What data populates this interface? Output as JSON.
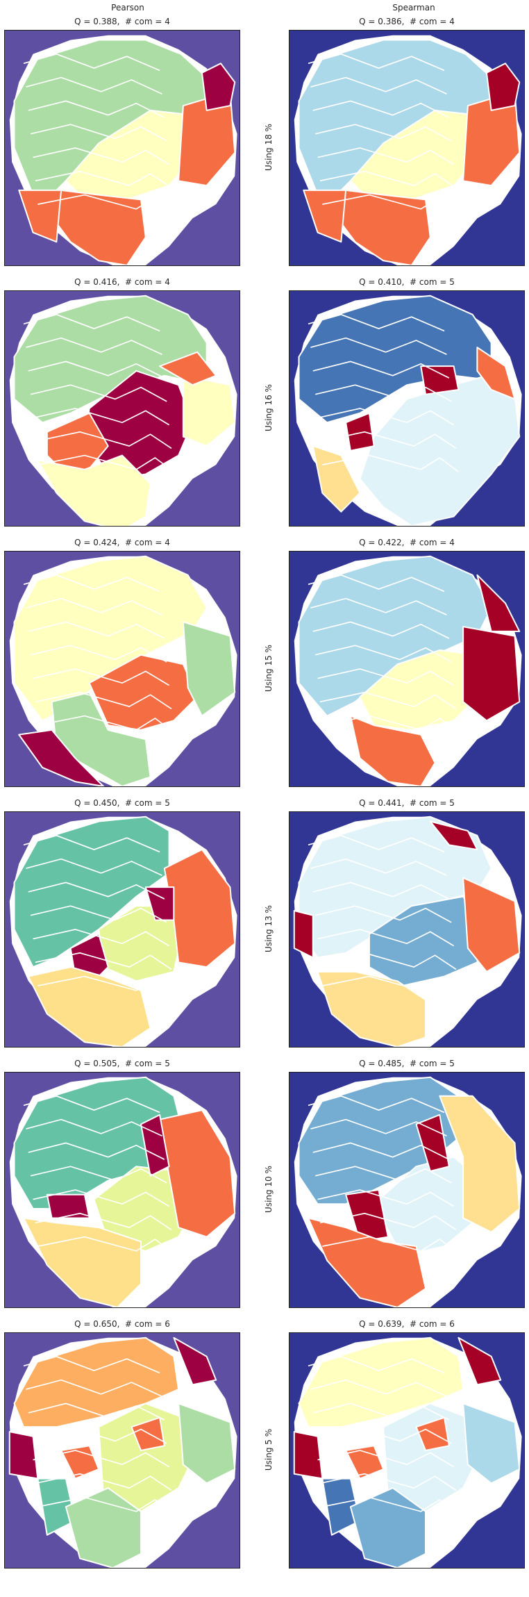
{
  "columns": {
    "left": "Pearson",
    "right": "Spearman"
  },
  "rows": [
    {
      "label": "Using 18 %",
      "pearson_title": "Q = 0.388,  # com = 4",
      "spearman_title": "Q = 0.386,  # com = 4"
    },
    {
      "label": "Using 16 %",
      "pearson_title": "Q = 0.416,  # com = 4",
      "spearman_title": "Q = 0.410,  # com = 5"
    },
    {
      "label": "Using 15 %",
      "pearson_title": "Q = 0.424,  # com = 4",
      "spearman_title": "Q = 0.422,  # com = 4"
    },
    {
      "label": "Using 13 %",
      "pearson_title": "Q = 0.450,  # com = 5",
      "spearman_title": "Q = 0.441,  # com = 5"
    },
    {
      "label": "Using 10 %",
      "pearson_title": "Q = 0.505,  # com = 5",
      "spearman_title": "Q = 0.485,  # com = 5"
    },
    {
      "label": "Using 5 %",
      "pearson_title": "Q = 0.650,  # com = 6",
      "spearman_title": "Q = 0.639,  # com = 6"
    }
  ],
  "colors": {
    "pearson_background": "#5e4fa2",
    "spearman_background": "#313695",
    "boundary": "#ffffff",
    "pearson_palette": [
      "#9e0142",
      "#f46d43",
      "#fdae61",
      "#fee08b",
      "#ffffbf",
      "#e6f598",
      "#abdda4",
      "#66c2a5",
      "#3288bd"
    ],
    "spearman_palette": [
      "#a50026",
      "#f46d43",
      "#fdae61",
      "#fee090",
      "#ffffbf",
      "#e0f3f8",
      "#abd9e9",
      "#74add1",
      "#4575b4"
    ]
  }
}
